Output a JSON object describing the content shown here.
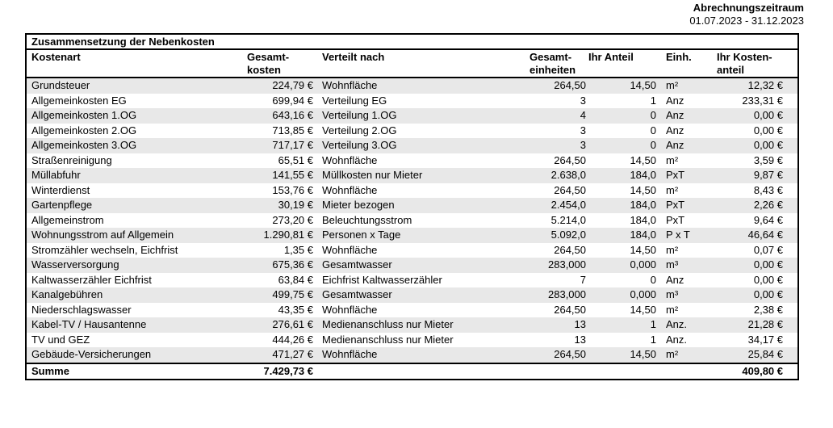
{
  "billing_period": {
    "label": "Abrechnungszeitraum",
    "value": "01.07.2023 - 31.12.2023"
  },
  "colors": {
    "row_shade": "#e8e8e8",
    "border": "#000000",
    "text": "#000000",
    "background": "#ffffff"
  },
  "table": {
    "section_title": "Zusammensetzung der Nebenkosten",
    "columns": [
      {
        "key": "kostenart",
        "line1": "Kostenart"
      },
      {
        "key": "gesamtkosten",
        "line1": "Gesamt-",
        "line2": "kosten"
      },
      {
        "key": "verteilt_nach",
        "line1": "Verteilt nach"
      },
      {
        "key": "gesamt_einheiten",
        "line1": "Gesamt-",
        "line2": "einheiten"
      },
      {
        "key": "ihr_anteil",
        "line1": "Ihr Anteil"
      },
      {
        "key": "einheit",
        "line1": "Einh."
      },
      {
        "key": "ihr_kostenanteil",
        "line1": "Ihr Kosten-",
        "line2": "anteil"
      }
    ],
    "rows": [
      {
        "kostenart": "Grundsteuer",
        "gesamtkosten": "224,79 €",
        "verteilt_nach": "Wohnfläche",
        "gesamt_einheiten": "264,50",
        "ihr_anteil": "14,50",
        "einheit": "m²",
        "ihr_kostenanteil": "12,32 €"
      },
      {
        "kostenart": "Allgemeinkosten EG",
        "gesamtkosten": "699,94 €",
        "verteilt_nach": "Verteilung EG",
        "gesamt_einheiten": "3",
        "ihr_anteil": "1",
        "einheit": "Anz",
        "ihr_kostenanteil": "233,31 €"
      },
      {
        "kostenart": "Allgemeinkosten 1.OG",
        "gesamtkosten": "643,16 €",
        "verteilt_nach": "Verteilung 1.OG",
        "gesamt_einheiten": "4",
        "ihr_anteil": "0",
        "einheit": "Anz",
        "ihr_kostenanteil": "0,00 €"
      },
      {
        "kostenart": "Allgemeinkosten 2.OG",
        "gesamtkosten": "713,85 €",
        "verteilt_nach": "Verteilung 2.OG",
        "gesamt_einheiten": "3",
        "ihr_anteil": "0",
        "einheit": "Anz",
        "ihr_kostenanteil": "0,00 €"
      },
      {
        "kostenart": "Allgemeinkosten 3.OG",
        "gesamtkosten": "717,17 €",
        "verteilt_nach": "Verteilung 3.OG",
        "gesamt_einheiten": "3",
        "ihr_anteil": "0",
        "einheit": "Anz",
        "ihr_kostenanteil": "0,00 €"
      },
      {
        "kostenart": "Straßenreinigung",
        "gesamtkosten": "65,51 €",
        "verteilt_nach": "Wohnfläche",
        "gesamt_einheiten": "264,50",
        "ihr_anteil": "14,50",
        "einheit": "m²",
        "ihr_kostenanteil": "3,59 €"
      },
      {
        "kostenart": "Müllabfuhr",
        "gesamtkosten": "141,55 €",
        "verteilt_nach": "Müllkosten nur Mieter",
        "gesamt_einheiten": "2.638,0",
        "ihr_anteil": "184,0",
        "einheit": "PxT",
        "ihr_kostenanteil": "9,87 €"
      },
      {
        "kostenart": "Winterdienst",
        "gesamtkosten": "153,76 €",
        "verteilt_nach": "Wohnfläche",
        "gesamt_einheiten": "264,50",
        "ihr_anteil": "14,50",
        "einheit": "m²",
        "ihr_kostenanteil": "8,43 €"
      },
      {
        "kostenart": "Gartenpflege",
        "gesamtkosten": "30,19 €",
        "verteilt_nach": "Mieter bezogen",
        "gesamt_einheiten": "2.454,0",
        "ihr_anteil": "184,0",
        "einheit": "PxT",
        "ihr_kostenanteil": "2,26 €"
      },
      {
        "kostenart": "Allgemeinstrom",
        "gesamtkosten": "273,20 €",
        "verteilt_nach": "Beleuchtungsstrom",
        "gesamt_einheiten": "5.214,0",
        "ihr_anteil": "184,0",
        "einheit": "PxT",
        "ihr_kostenanteil": "9,64 €"
      },
      {
        "kostenart": "Wohnungsstrom auf Allgemein",
        "gesamtkosten": "1.290,81 €",
        "verteilt_nach": "Personen x Tage",
        "gesamt_einheiten": "5.092,0",
        "ihr_anteil": "184,0",
        "einheit": "P x T",
        "ihr_kostenanteil": "46,64 €"
      },
      {
        "kostenart": "Stromzähler wechseln, Eichfrist",
        "gesamtkosten": "1,35 €",
        "verteilt_nach": "Wohnfläche",
        "gesamt_einheiten": "264,50",
        "ihr_anteil": "14,50",
        "einheit": "m²",
        "ihr_kostenanteil": "0,07 €"
      },
      {
        "kostenart": "Wasserversorgung",
        "gesamtkosten": "675,36 €",
        "verteilt_nach": "Gesamtwasser",
        "gesamt_einheiten": "283,000",
        "ihr_anteil": "0,000",
        "einheit": "m³",
        "ihr_kostenanteil": "0,00 €"
      },
      {
        "kostenart": "Kaltwasserzähler Eichfrist",
        "gesamtkosten": "63,84 €",
        "verteilt_nach": "Eichfrist Kaltwasserzähler",
        "gesamt_einheiten": "7",
        "ihr_anteil": "0",
        "einheit": "Anz",
        "ihr_kostenanteil": "0,00 €"
      },
      {
        "kostenart": "Kanalgebühren",
        "gesamtkosten": "499,75 €",
        "verteilt_nach": "Gesamtwasser",
        "gesamt_einheiten": "283,000",
        "ihr_anteil": "0,000",
        "einheit": "m³",
        "ihr_kostenanteil": "0,00 €"
      },
      {
        "kostenart": "Niederschlagswasser",
        "gesamtkosten": "43,35 €",
        "verteilt_nach": "Wohnfläche",
        "gesamt_einheiten": "264,50",
        "ihr_anteil": "14,50",
        "einheit": "m²",
        "ihr_kostenanteil": "2,38 €"
      },
      {
        "kostenart": "Kabel-TV / Hausantenne",
        "gesamtkosten": "276,61 €",
        "verteilt_nach": "Medienanschluss nur Mieter",
        "gesamt_einheiten": "13",
        "ihr_anteil": "1",
        "einheit": "Anz.",
        "ihr_kostenanteil": "21,28 €"
      },
      {
        "kostenart": "TV und GEZ",
        "gesamtkosten": "444,26 €",
        "verteilt_nach": "Medienanschluss nur Mieter",
        "gesamt_einheiten": "13",
        "ihr_anteil": "1",
        "einheit": "Anz.",
        "ihr_kostenanteil": "34,17 €"
      },
      {
        "kostenart": "Gebäude-Versicherungen",
        "gesamtkosten": "471,27 €",
        "verteilt_nach": "Wohnfläche",
        "gesamt_einheiten": "264,50",
        "ihr_anteil": "14,50",
        "einheit": "m²",
        "ihr_kostenanteil": "25,84 €"
      }
    ],
    "summe": {
      "label": "Summe",
      "gesamtkosten": "7.429,73 €",
      "ihr_kostenanteil": "409,80 €"
    }
  }
}
